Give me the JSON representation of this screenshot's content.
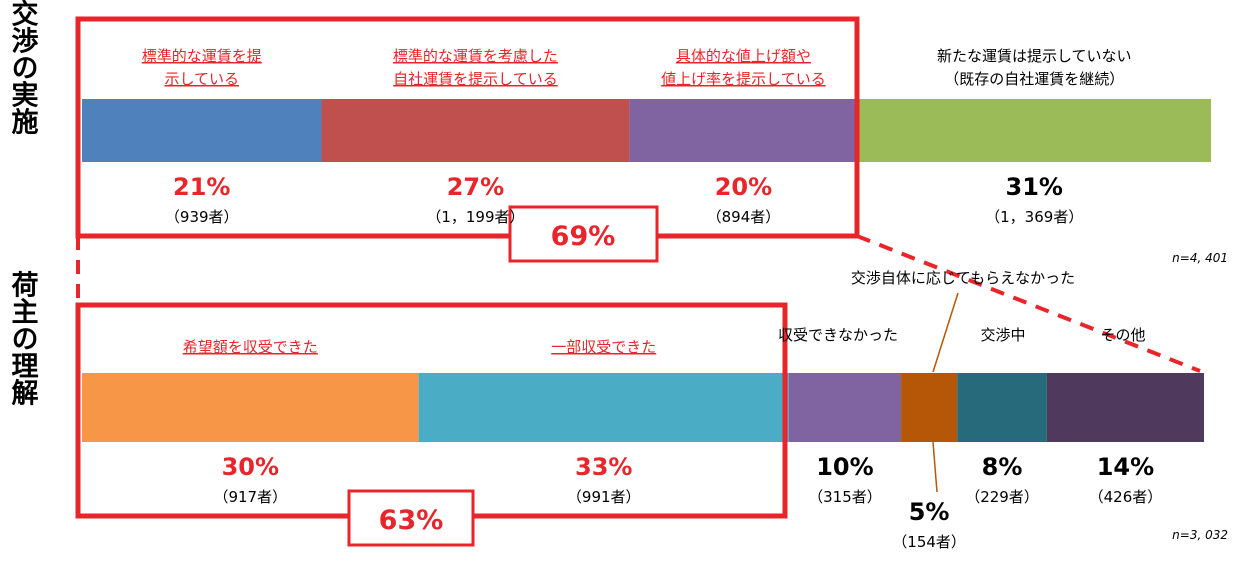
{
  "chart_data": [
    {
      "type": "bar",
      "orientation": "horizontal-stacked-100",
      "title": "運賃交渉の実施",
      "n_label": "n=4, 401",
      "segments": [
        {
          "label": "標準的な運賃を提示している",
          "label_lines": [
            "標準的な運賃を提",
            "示している"
          ],
          "value": 21,
          "value_label": "21%",
          "count": "（939者）",
          "color": "#4f81bd",
          "highlighted": true
        },
        {
          "label": "標準的な運賃を考慮した自社運賃を提示している",
          "label_lines": [
            "標準的な運賃を考慮した",
            "自社運賃を提示している"
          ],
          "value": 27,
          "value_label": "27%",
          "count": "（1，199者）",
          "color": "#c0504d",
          "highlighted": true
        },
        {
          "label": "具体的な値上げ額や値上げ率を提示している",
          "label_lines": [
            "具体的な値上げ額や",
            "値上げ率を提示している"
          ],
          "value": 20,
          "value_label": "20%",
          "count": "（894者）",
          "color": "#8064a2",
          "highlighted": true
        },
        {
          "label": "新たな運賃は提示していない（既存の自社運賃を継続）",
          "label_lines": [
            "新たな運賃は提示していない",
            "（既存の自社運賃を継続）"
          ],
          "value": 31,
          "value_label": "31%",
          "count": "（1，369者）",
          "color": "#9bbb59",
          "highlighted": false
        }
      ],
      "group_total_label": "69%"
    },
    {
      "type": "bar",
      "orientation": "horizontal-stacked-100",
      "title": "荷主の理解",
      "n_label": "n=3, 032",
      "segments": [
        {
          "label": "希望額を収受できた",
          "label_lines": [
            "希望額を収受できた"
          ],
          "value": 30,
          "value_label": "30%",
          "count": "（917者）",
          "color": "#f79646",
          "highlighted": true
        },
        {
          "label": "一部収受できた",
          "label_lines": [
            "一部収受できた"
          ],
          "value": 33,
          "value_label": "33%",
          "count": "（991者）",
          "color": "#4bacc6",
          "highlighted": true
        },
        {
          "label": "収受できなかった",
          "label_lines": [
            "収受できなかった"
          ],
          "value": 10,
          "value_label": "10%",
          "count": "（315者）",
          "color": "#8064a2",
          "highlighted": false
        },
        {
          "label": "交渉自体に応じてもらえなかった",
          "label_lines": [
            "交渉自体に応じてもらえなかった"
          ],
          "value": 5,
          "value_label": "5%",
          "count": "（154者）",
          "color": "#b65708",
          "highlighted": false
        },
        {
          "label": "交渉中",
          "label_lines": [
            "交渉中"
          ],
          "value": 8,
          "value_label": "8%",
          "count": "（229者）",
          "color": "#276a7c",
          "highlighted": false
        },
        {
          "label": "その他",
          "label_lines": [
            "その他"
          ],
          "value": 14,
          "value_label": "14%",
          "count": "（426者）",
          "color": "#4f3a5e",
          "highlighted": false
        }
      ],
      "group_total_label": "63%"
    }
  ],
  "colors": {
    "highlight": "#e8252a"
  }
}
